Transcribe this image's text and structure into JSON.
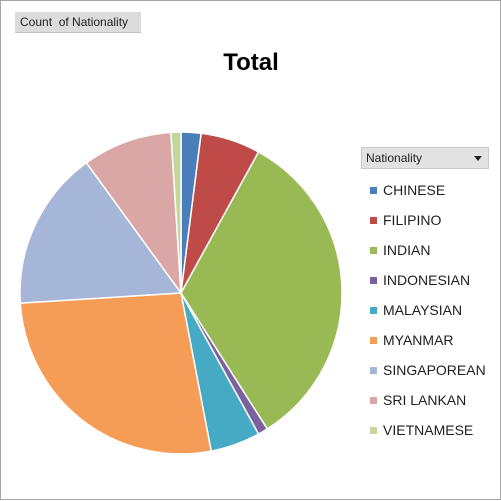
{
  "field_button": {
    "label": "Count  of Nationality"
  },
  "legend_filter": {
    "label": "Nationality"
  },
  "chart_data": {
    "type": "pie",
    "title": "Total",
    "legend_position": "right",
    "categories": [
      "CHINESE",
      "FILIPINO",
      "INDIAN",
      "INDONESIAN",
      "MALAYSIAN",
      "MYANMAR",
      "SINGAPOREAN",
      "SRI LANKAN",
      "VIETNAMESE"
    ],
    "values": [
      2.0,
      6.0,
      33.0,
      1.0,
      5.0,
      27.0,
      16.0,
      9.0,
      1.0
    ],
    "colors": [
      "#4a7ebb",
      "#be4b48",
      "#98b954",
      "#7d60a0",
      "#46aac4",
      "#f59d56",
      "#a5b6d8",
      "#daa7a6",
      "#c3d69b"
    ]
  }
}
